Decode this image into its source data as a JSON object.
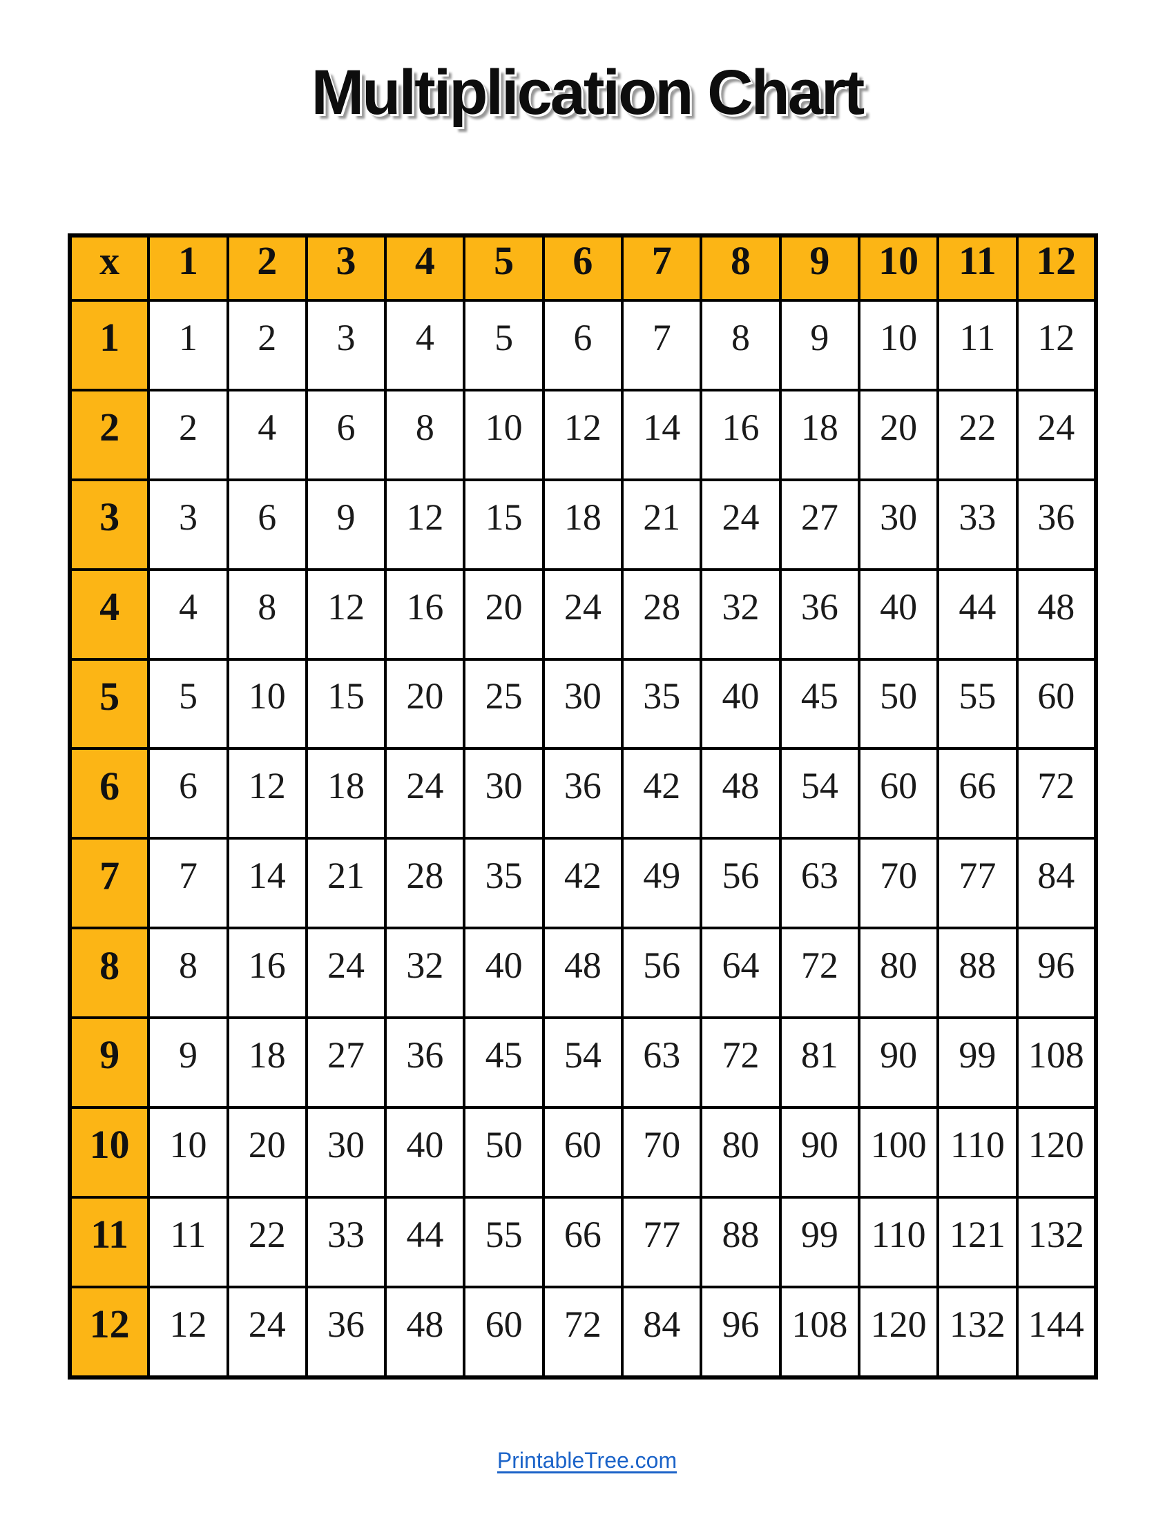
{
  "page": {
    "title": "Multiplication Chart"
  },
  "colors": {
    "header_bg": "#FCB515",
    "border": "#000000",
    "title": "#0D0D0D",
    "link": "#1B63C8"
  },
  "chart_data": {
    "type": "table",
    "title": "Multiplication Chart",
    "corner_label": "x",
    "column_headers": [
      "1",
      "2",
      "3",
      "4",
      "5",
      "6",
      "7",
      "8",
      "9",
      "10",
      "11",
      "12"
    ],
    "row_headers": [
      "1",
      "2",
      "3",
      "4",
      "5",
      "6",
      "7",
      "8",
      "9",
      "10",
      "11",
      "12"
    ],
    "rows": [
      [
        "1",
        "2",
        "3",
        "4",
        "5",
        "6",
        "7",
        "8",
        "9",
        "10",
        "11",
        "12"
      ],
      [
        "2",
        "4",
        "6",
        "8",
        "10",
        "12",
        "14",
        "16",
        "18",
        "20",
        "22",
        "24"
      ],
      [
        "3",
        "6",
        "9",
        "12",
        "15",
        "18",
        "21",
        "24",
        "27",
        "30",
        "33",
        "36"
      ],
      [
        "4",
        "8",
        "12",
        "16",
        "20",
        "24",
        "28",
        "32",
        "36",
        "40",
        "44",
        "48"
      ],
      [
        "5",
        "10",
        "15",
        "20",
        "25",
        "30",
        "35",
        "40",
        "45",
        "50",
        "55",
        "60"
      ],
      [
        "6",
        "12",
        "18",
        "24",
        "30",
        "36",
        "42",
        "48",
        "54",
        "60",
        "66",
        "72"
      ],
      [
        "7",
        "14",
        "21",
        "28",
        "35",
        "42",
        "49",
        "56",
        "63",
        "70",
        "77",
        "84"
      ],
      [
        "8",
        "16",
        "24",
        "32",
        "40",
        "48",
        "56",
        "64",
        "72",
        "80",
        "88",
        "96"
      ],
      [
        "9",
        "18",
        "27",
        "36",
        "45",
        "54",
        "63",
        "72",
        "81",
        "90",
        "99",
        "108"
      ],
      [
        "10",
        "20",
        "30",
        "40",
        "50",
        "60",
        "70",
        "80",
        "90",
        "100",
        "110",
        "120"
      ],
      [
        "11",
        "22",
        "33",
        "44",
        "55",
        "66",
        "77",
        "88",
        "99",
        "110",
        "121",
        "132"
      ],
      [
        "12",
        "24",
        "36",
        "48",
        "60",
        "72",
        "84",
        "96",
        "108",
        "120",
        "132",
        "144"
      ]
    ]
  },
  "footer": {
    "link_text": "PrintableTree.com"
  }
}
